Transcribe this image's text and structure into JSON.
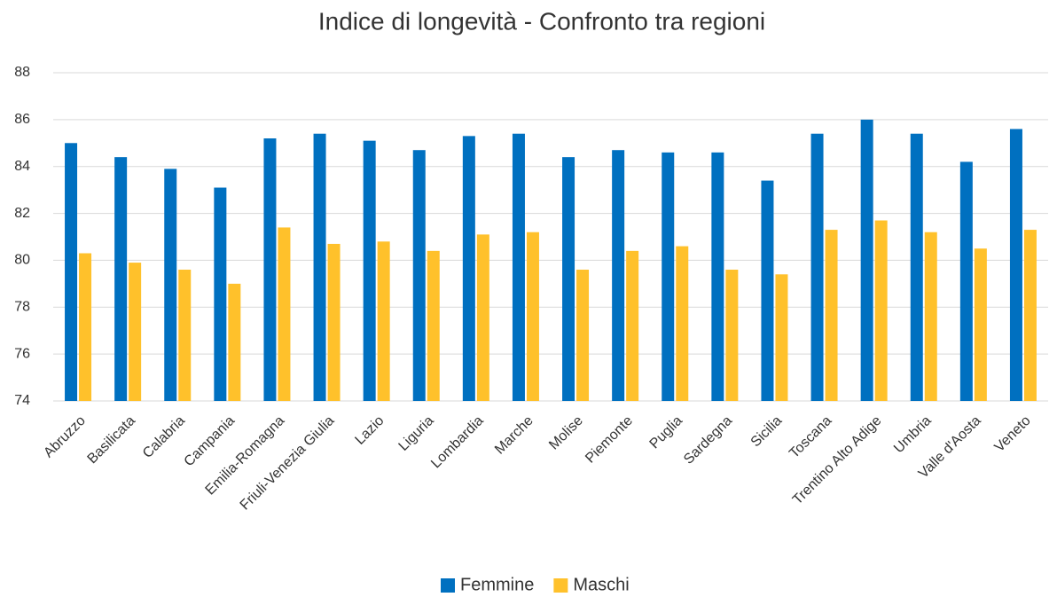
{
  "chart_data": {
    "type": "bar",
    "title": "Indice di longevità - Confronto tra regioni",
    "categories": [
      "Abruzzo",
      "Basilicata",
      "Calabria",
      "Campania",
      "Emilia-Romagna",
      "Friuli-Venezia Giulia",
      "Lazio",
      "Liguria",
      "Lombardia",
      "Marche",
      "Molise",
      "Piemonte",
      "Puglia",
      "Sardegna",
      "Sicilia",
      "Toscana",
      "Trentino Alto Adige",
      "Umbria",
      "Valle d'Aosta",
      "Veneto"
    ],
    "series": [
      {
        "name": "Femmine",
        "color": "#0070c0",
        "values": [
          85.0,
          84.4,
          83.9,
          83.1,
          85.2,
          85.4,
          85.1,
          84.7,
          85.3,
          85.4,
          84.4,
          84.7,
          84.6,
          84.6,
          83.4,
          85.4,
          86.0,
          85.4,
          84.2,
          85.6
        ]
      },
      {
        "name": "Maschi",
        "color": "#ffc12b",
        "values": [
          80.3,
          79.9,
          79.6,
          79.0,
          81.4,
          80.7,
          80.8,
          80.4,
          81.1,
          81.2,
          79.6,
          80.4,
          80.6,
          79.6,
          79.4,
          81.3,
          81.7,
          81.2,
          80.5,
          81.3
        ]
      }
    ],
    "ylim": [
      74,
      88
    ],
    "yticks": [
      74,
      76,
      78,
      80,
      82,
      84,
      86,
      88
    ],
    "grid": true,
    "legend": "bottom"
  }
}
